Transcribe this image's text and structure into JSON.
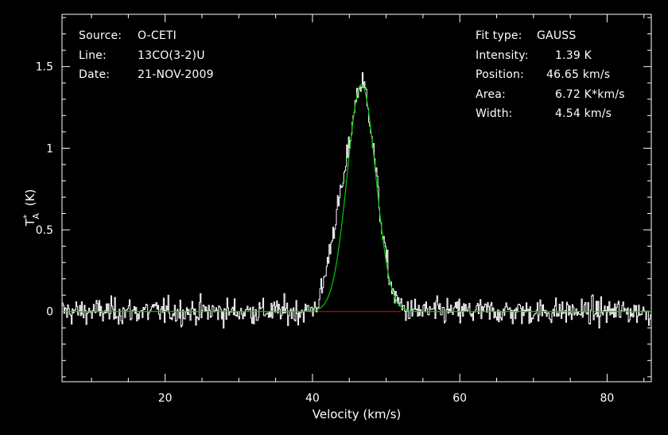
{
  "info_left": [
    {
      "key": "Source:",
      "value": "O-CETI"
    },
    {
      "key": "Line:",
      "value": "13CO(3-2)U"
    },
    {
      "key": "Date:",
      "value": "21-NOV-2009"
    }
  ],
  "info_right": [
    {
      "key": "Fit type:",
      "value": "GAUSS",
      "indent": 77
    },
    {
      "key": "Intensity:",
      "value": "1.39 K",
      "indent": 100
    },
    {
      "key": "Position:",
      "value": "46.65 km/s",
      "indent": 89
    },
    {
      "key": "Area:",
      "value": "6.72 K*km/s",
      "indent": 100
    },
    {
      "key": "Width:",
      "value": "4.54 km/s",
      "indent": 100
    }
  ],
  "chart_data": {
    "type": "line",
    "xlabel": "Velocity (km/s)",
    "ylabel": "T",
    "ylabel_sup": "*",
    "ylabel_sub": "A",
    "ylabel_unit": "(K)",
    "xlim": [
      6,
      86
    ],
    "ylim": [
      -0.43,
      1.82
    ],
    "xticks": [
      20,
      40,
      60,
      80
    ],
    "yticks": [
      0,
      0.5,
      1,
      1.5
    ],
    "ytick_labels": [
      "0",
      "0.5",
      "1",
      "1.5"
    ],
    "series": [
      {
        "kind": "spectrum",
        "color": "#ffffff",
        "noise_rms": 0.08,
        "x_start": 6,
        "x_step": 0.125
      },
      {
        "kind": "gauss_fit",
        "color": "#00cc00",
        "amplitude": 1.39,
        "center": 46.65,
        "fwhm": 4.54
      },
      {
        "kind": "baseline",
        "color": "#ff0000",
        "x_range": [
          40,
          52
        ],
        "y": 0
      }
    ],
    "colors": {
      "background": "#000000",
      "axes": "#ffffff",
      "text": "#ffffff"
    }
  }
}
